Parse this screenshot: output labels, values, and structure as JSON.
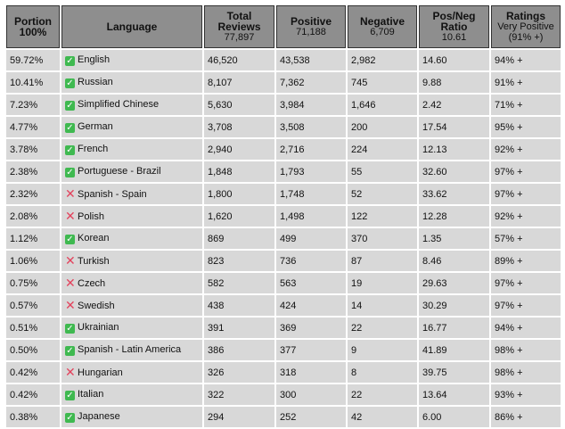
{
  "headers": [
    {
      "main": "Portion",
      "sub": "100%"
    },
    {
      "main": "Language",
      "sub": ""
    },
    {
      "main": "Total Reviews",
      "sub": "77,897"
    },
    {
      "main": "Positive",
      "sub": "71,188"
    },
    {
      "main": "Negative",
      "sub": "6,709"
    },
    {
      "main": "Pos/Neg Ratio",
      "sub": "10.61"
    },
    {
      "main": "Ratings",
      "sub": "Very Positive (91% +)"
    }
  ],
  "colors": {
    "header_bg": "#8e8e8e",
    "row_bg": "#d8d8d8",
    "check": "#3fb950",
    "cross": "#e3435d"
  },
  "rows": [
    {
      "portion": "59.72%",
      "icon": "check-icon",
      "language": "English",
      "total": "46,520",
      "positive": "43,538",
      "negative": "2,982",
      "ratio": "14.60",
      "rating": "94% +"
    },
    {
      "portion": "10.41%",
      "icon": "check-icon",
      "language": "Russian",
      "total": "8,107",
      "positive": "7,362",
      "negative": "745",
      "ratio": "9.88",
      "rating": "91% +"
    },
    {
      "portion": "7.23%",
      "icon": "check-icon",
      "language": "Simplified Chinese",
      "total": "5,630",
      "positive": "3,984",
      "negative": "1,646",
      "ratio": "2.42",
      "rating": "71% +"
    },
    {
      "portion": "4.77%",
      "icon": "check-icon",
      "language": "German",
      "total": "3,708",
      "positive": "3,508",
      "negative": "200",
      "ratio": "17.54",
      "rating": "95% +"
    },
    {
      "portion": "3.78%",
      "icon": "check-icon",
      "language": "French",
      "total": "2,940",
      "positive": "2,716",
      "negative": "224",
      "ratio": "12.13",
      "rating": "92% +"
    },
    {
      "portion": "2.38%",
      "icon": "check-icon",
      "language": "Portuguese - Brazil",
      "total": "1,848",
      "positive": "1,793",
      "negative": "55",
      "ratio": "32.60",
      "rating": "97% +"
    },
    {
      "portion": "2.32%",
      "icon": "cross-icon",
      "language": "Spanish - Spain",
      "total": "1,800",
      "positive": "1,748",
      "negative": "52",
      "ratio": "33.62",
      "rating": "97% +"
    },
    {
      "portion": "2.08%",
      "icon": "cross-icon",
      "language": "Polish",
      "total": "1,620",
      "positive": "1,498",
      "negative": "122",
      "ratio": "12.28",
      "rating": "92% +"
    },
    {
      "portion": "1.12%",
      "icon": "check-icon",
      "language": "Korean",
      "total": "869",
      "positive": "499",
      "negative": "370",
      "ratio": "1.35",
      "rating": "57% +"
    },
    {
      "portion": "1.06%",
      "icon": "cross-icon",
      "language": "Turkish",
      "total": "823",
      "positive": "736",
      "negative": "87",
      "ratio": "8.46",
      "rating": "89% +"
    },
    {
      "portion": "0.75%",
      "icon": "cross-icon",
      "language": "Czech",
      "total": "582",
      "positive": "563",
      "negative": "19",
      "ratio": "29.63",
      "rating": "97% +"
    },
    {
      "portion": "0.57%",
      "icon": "cross-icon",
      "language": "Swedish",
      "total": "438",
      "positive": "424",
      "negative": "14",
      "ratio": "30.29",
      "rating": "97% +"
    },
    {
      "portion": "0.51%",
      "icon": "check-icon",
      "language": "Ukrainian",
      "total": "391",
      "positive": "369",
      "negative": "22",
      "ratio": "16.77",
      "rating": "94% +"
    },
    {
      "portion": "0.50%",
      "icon": "check-icon",
      "language": "Spanish - Latin America",
      "total": "386",
      "positive": "377",
      "negative": "9",
      "ratio": "41.89",
      "rating": "98% +"
    },
    {
      "portion": "0.42%",
      "icon": "cross-icon",
      "language": "Hungarian",
      "total": "326",
      "positive": "318",
      "negative": "8",
      "ratio": "39.75",
      "rating": "98% +"
    },
    {
      "portion": "0.42%",
      "icon": "check-icon",
      "language": "Italian",
      "total": "322",
      "positive": "300",
      "negative": "22",
      "ratio": "13.64",
      "rating": "93% +"
    },
    {
      "portion": "0.38%",
      "icon": "check-icon",
      "language": "Japanese",
      "total": "294",
      "positive": "252",
      "negative": "42",
      "ratio": "6.00",
      "rating": "86% +"
    }
  ]
}
